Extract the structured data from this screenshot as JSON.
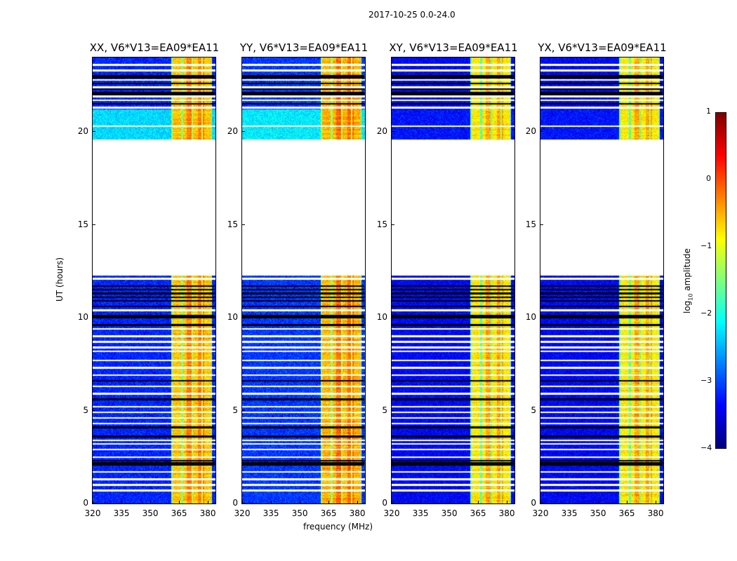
{
  "chart_data": {
    "type": "heatmap",
    "title": "2017-10-25 0.0-24.0",
    "xlabel": "frequency (MHz)",
    "ylabel": "UT (hours)",
    "xlim": [
      320,
      384
    ],
    "ylim": [
      0,
      24
    ],
    "xticks": [
      "320",
      "335",
      "350",
      "365",
      "380"
    ],
    "yticks": [
      "0",
      "5",
      "10",
      "15",
      "20"
    ],
    "colorbar": {
      "label": "log10 amplitude",
      "label_main": "log",
      "label_sub": "10",
      "label_tail": " amplitude",
      "range": [
        -4,
        1
      ],
      "ticks": [
        "1",
        "0",
        "−1",
        "−2",
        "−3",
        "−4"
      ],
      "colormap": "jet"
    },
    "panels": [
      {
        "title": "XX, V6*V13=EA09*EA11",
        "background_level": -3.2,
        "upper_level": -2.3,
        "band_level": -0.6
      },
      {
        "title": "YY, V6*V13=EA09*EA11",
        "background_level": -3.1,
        "upper_level": -2.2,
        "band_level": -0.5
      },
      {
        "title": "XY, V6*V13=EA09*EA11",
        "background_level": -3.4,
        "upper_level": -3.3,
        "band_level": -0.8
      },
      {
        "title": "YX, V6*V13=EA09*EA11",
        "background_level": -3.4,
        "upper_level": -3.3,
        "band_level": -0.8
      }
    ],
    "no_data_hours": [
      12.25,
      19.6
    ],
    "signal_band_mhz": [
      361,
      382
    ],
    "flagged_hours": [
      2.1,
      2.2,
      2.3,
      3.6,
      4.1,
      5.6,
      6.6,
      9.6,
      10.0,
      10.1,
      10.6,
      10.9,
      11.1,
      11.3,
      11.5,
      11.7,
      21.5,
      22.0,
      22.1,
      22.3,
      22.6,
      22.9,
      23.0
    ],
    "blank_hours": [
      0.7,
      1.0,
      1.3,
      1.7,
      2.5,
      2.9,
      3.2,
      3.4,
      4.3,
      4.6,
      4.9,
      5.2,
      5.9,
      6.3,
      6.9,
      7.3,
      7.7,
      8.2,
      8.4,
      8.7,
      9.0,
      9.4,
      10.4,
      12.1,
      20.3,
      21.3,
      21.7,
      21.9,
      22.4,
      22.8,
      23.3,
      23.6
    ]
  }
}
